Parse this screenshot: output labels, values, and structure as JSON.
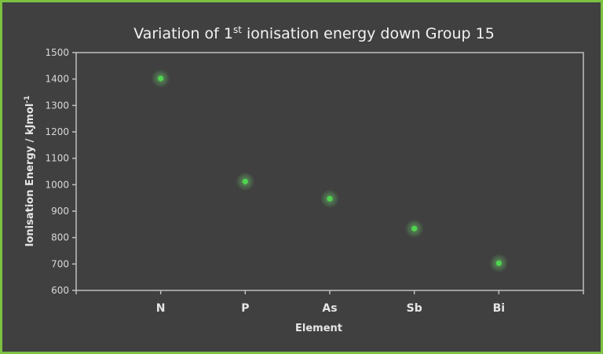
{
  "chart_data": {
    "type": "scatter",
    "title": "Variation of 1st ionisation energy down Group 15",
    "title_parts": {
      "pre": "Variation of 1",
      "sup": "st",
      "post": " ionisation  energy down Group 15"
    },
    "xlabel": "Element",
    "ylabel": "Ionisation Energy / kJmol-1",
    "ylabel_parts": {
      "main": "Ionisation Energy / kJmol",
      "sup": "-1"
    },
    "categories": [
      "N",
      "P",
      "As",
      "Sb",
      "Bi"
    ],
    "values": [
      1402,
      1012,
      947,
      834,
      703
    ],
    "ylim": [
      600,
      1500
    ],
    "yticks": [
      600,
      700,
      800,
      900,
      1000,
      1100,
      1200,
      1300,
      1400,
      1500
    ],
    "grid": false,
    "legend": null,
    "marker_color": "#4fd44f",
    "background_color": "#404040",
    "border_color": "#7cc142"
  }
}
